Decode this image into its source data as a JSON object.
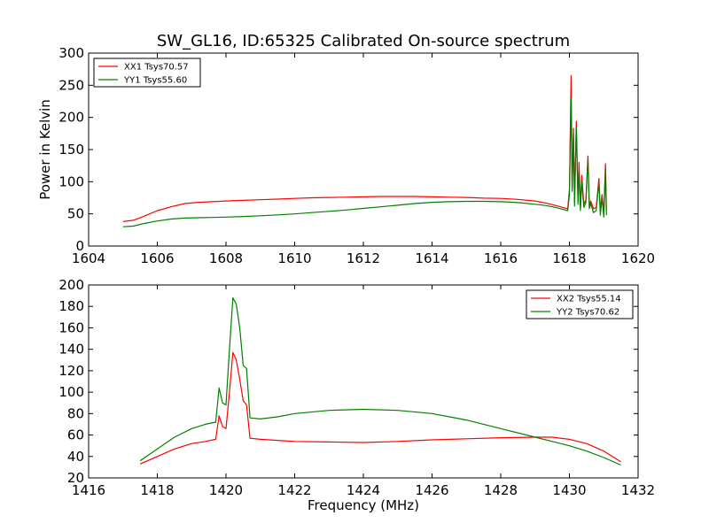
{
  "title": "SW_GL16, ID:65325 Calibrated On-source spectrum",
  "chart_data": [
    {
      "type": "line",
      "ylabel": "Power in Kelvin",
      "xlabel": "",
      "xlim": [
        1604,
        1620
      ],
      "ylim": [
        0,
        300
      ],
      "xticks": [
        "1604",
        "1606",
        "1608",
        "1610",
        "1612",
        "1614",
        "1616",
        "1618",
        "1620"
      ],
      "yticks": [
        "0",
        "50",
        "100",
        "150",
        "200",
        "250",
        "300"
      ],
      "legend_position": "top-left",
      "series": [
        {
          "name": "XX1 Tsys70.57",
          "color": "#ff0000",
          "x": [
            1605.0,
            1605.3,
            1605.6,
            1606.0,
            1606.4,
            1606.8,
            1607.2,
            1607.6,
            1608.0,
            1608.5,
            1609.0,
            1609.5,
            1610.0,
            1610.5,
            1611.0,
            1611.5,
            1612.0,
            1612.5,
            1613.0,
            1613.5,
            1614.0,
            1614.5,
            1615.0,
            1615.5,
            1616.0,
            1616.5,
            1617.0,
            1617.3,
            1617.6,
            1617.95,
            1618.0,
            1618.05,
            1618.08,
            1618.12,
            1618.15,
            1618.2,
            1618.25,
            1618.28,
            1618.32,
            1618.36,
            1618.42,
            1618.48,
            1618.54,
            1618.58,
            1618.62,
            1618.7,
            1618.78,
            1618.86,
            1618.9,
            1618.95,
            1619.0,
            1619.05,
            1619.08
          ],
          "values": [
            38,
            40,
            46,
            55,
            61,
            66,
            68,
            69,
            70,
            71,
            72,
            73,
            74,
            75,
            75.5,
            76,
            76.5,
            77,
            77,
            77,
            76.5,
            76,
            75.5,
            74.5,
            74,
            72.5,
            70,
            67,
            63,
            58,
            88,
            265,
            90,
            183,
            68,
            194,
            70,
            130,
            60,
            110,
            65,
            72,
            140,
            62,
            70,
            58,
            60,
            105,
            55,
            80,
            52,
            128,
            55
          ]
        },
        {
          "name": "YY1 Tsys55.60",
          "color": "#008000",
          "x": [
            1605.0,
            1605.3,
            1605.6,
            1606.0,
            1606.4,
            1606.8,
            1607.2,
            1607.6,
            1608.0,
            1608.5,
            1609.0,
            1609.5,
            1610.0,
            1610.5,
            1611.0,
            1611.5,
            1612.0,
            1612.5,
            1613.0,
            1613.5,
            1614.0,
            1614.5,
            1615.0,
            1615.5,
            1616.0,
            1616.5,
            1617.0,
            1617.3,
            1617.6,
            1617.95,
            1618.0,
            1618.05,
            1618.08,
            1618.12,
            1618.15,
            1618.2,
            1618.25,
            1618.28,
            1618.32,
            1618.36,
            1618.42,
            1618.48,
            1618.54,
            1618.58,
            1618.62,
            1618.7,
            1618.78,
            1618.86,
            1618.9,
            1618.95,
            1619.0,
            1619.05,
            1619.08
          ],
          "values": [
            30,
            31,
            35,
            39,
            42,
            43.5,
            44,
            44.5,
            45,
            46,
            47,
            48.5,
            50,
            52,
            54,
            56,
            58.5,
            61,
            63.5,
            66,
            68,
            69,
            69.5,
            69.5,
            69,
            67.5,
            65,
            63,
            60,
            55,
            80,
            230,
            85,
            175,
            62,
            185,
            65,
            120,
            55,
            100,
            60,
            68,
            135,
            58,
            66,
            52,
            55,
            100,
            48,
            75,
            45,
            118,
            48
          ]
        }
      ]
    },
    {
      "type": "line",
      "ylabel": "",
      "xlabel": "Frequency (MHz)",
      "xlim": [
        1416,
        1432
      ],
      "ylim": [
        20,
        200
      ],
      "xticks": [
        "1416",
        "1418",
        "1420",
        "1422",
        "1424",
        "1426",
        "1428",
        "1430",
        "1432"
      ],
      "yticks": [
        "20",
        "40",
        "60",
        "80",
        "100",
        "120",
        "140",
        "160",
        "180",
        "200"
      ],
      "legend_position": "top-right",
      "series": [
        {
          "name": "XX2 Tsys55.14",
          "color": "#ff0000",
          "x": [
            1417.5,
            1418.0,
            1418.5,
            1419.0,
            1419.4,
            1419.7,
            1419.8,
            1419.9,
            1420.0,
            1420.1,
            1420.2,
            1420.3,
            1420.4,
            1420.5,
            1420.6,
            1420.7,
            1421.0,
            1421.5,
            1422.0,
            1423.0,
            1424.0,
            1425.0,
            1426.0,
            1427.0,
            1428.0,
            1429.0,
            1429.5,
            1430.0,
            1430.5,
            1431.0,
            1431.5
          ],
          "values": [
            33,
            40,
            47,
            52,
            54,
            56,
            78,
            68,
            66,
            100,
            137,
            130,
            112,
            92,
            88,
            57,
            56,
            55,
            54,
            53.5,
            53,
            54,
            55.5,
            56.5,
            57.5,
            58,
            58,
            56,
            52,
            45,
            35
          ]
        },
        {
          "name": "YY2 Tsys70.62",
          "color": "#008000",
          "x": [
            1417.5,
            1418.0,
            1418.5,
            1419.0,
            1419.4,
            1419.7,
            1419.8,
            1419.9,
            1420.0,
            1420.1,
            1420.2,
            1420.3,
            1420.4,
            1420.5,
            1420.6,
            1420.7,
            1421.0,
            1421.5,
            1422.0,
            1423.0,
            1424.0,
            1425.0,
            1426.0,
            1427.0,
            1428.0,
            1429.0,
            1429.5,
            1430.0,
            1430.5,
            1431.0,
            1431.5
          ],
          "values": [
            36,
            47,
            58,
            66,
            70,
            72,
            104,
            90,
            88,
            140,
            188,
            182,
            160,
            125,
            122,
            76,
            75,
            77,
            80,
            83,
            84,
            83,
            80,
            74,
            66,
            58,
            54,
            50,
            45,
            39,
            32
          ]
        }
      ]
    }
  ]
}
